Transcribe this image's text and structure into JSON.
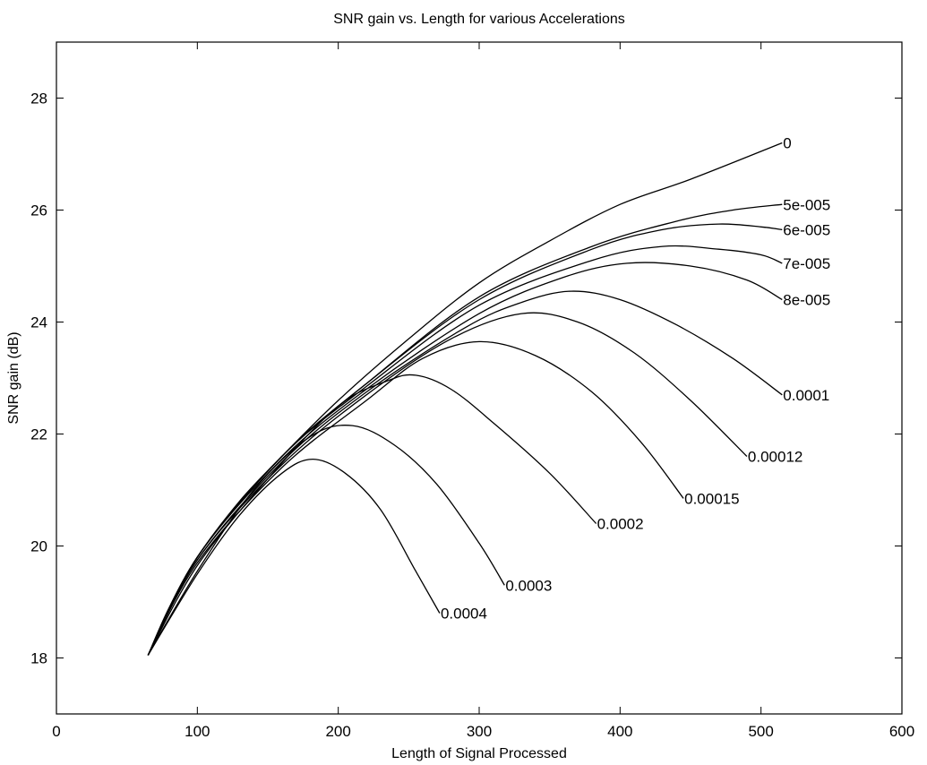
{
  "chart_data": {
    "type": "line",
    "title": "SNR gain vs. Length for various Accelerations",
    "xlabel": "Length of Signal Processed",
    "ylabel": "SNR gain (dB)",
    "xlim": [
      0,
      600
    ],
    "ylim": [
      17,
      29
    ],
    "xticks": [
      0,
      100,
      200,
      300,
      400,
      500,
      600
    ],
    "yticks": [
      18,
      20,
      22,
      24,
      26,
      28
    ],
    "grid": false,
    "series": [
      {
        "name": "0",
        "x": [
          65,
          80,
          100,
          130,
          160,
          200,
          250,
          300,
          350,
          400,
          450,
          515
        ],
        "y": [
          18.05,
          18.9,
          19.8,
          20.8,
          21.6,
          22.6,
          23.7,
          24.7,
          25.45,
          26.1,
          26.55,
          27.2
        ]
      },
      {
        "name": "5e-005",
        "x": [
          65,
          100,
          160,
          220,
          300,
          380,
          440,
          480,
          515
        ],
        "y": [
          18.05,
          19.8,
          21.6,
          22.9,
          24.45,
          25.35,
          25.8,
          26.0,
          26.1
        ]
      },
      {
        "name": "6e-005",
        "x": [
          65,
          100,
          160,
          220,
          300,
          380,
          430,
          470,
          500,
          515
        ],
        "y": [
          18.05,
          19.8,
          21.6,
          22.9,
          24.4,
          25.3,
          25.65,
          25.75,
          25.7,
          25.65
        ]
      },
      {
        "name": "7e-005",
        "x": [
          65,
          100,
          160,
          220,
          300,
          380,
          430,
          470,
          500,
          515
        ],
        "y": [
          18.05,
          19.8,
          21.6,
          22.85,
          24.3,
          25.1,
          25.35,
          25.3,
          25.2,
          25.05
        ]
      },
      {
        "name": "8e-005",
        "x": [
          65,
          100,
          160,
          220,
          300,
          360,
          405,
          450,
          490,
          515
        ],
        "y": [
          18.05,
          19.8,
          21.55,
          22.8,
          24.15,
          24.8,
          25.05,
          25.0,
          24.75,
          24.4
        ]
      },
      {
        "name": "0.0001",
        "x": [
          65,
          100,
          160,
          220,
          290,
          330,
          365,
          400,
          440,
          480,
          515
        ],
        "y": [
          18.05,
          19.75,
          21.5,
          22.75,
          23.9,
          24.35,
          24.55,
          24.4,
          23.95,
          23.35,
          22.7
        ]
      },
      {
        "name": "0.00012",
        "x": [
          65,
          100,
          160,
          220,
          280,
          330,
          370,
          410,
          450,
          490
        ],
        "y": [
          18.05,
          19.75,
          21.45,
          22.7,
          23.7,
          24.15,
          24.0,
          23.45,
          22.6,
          21.6
        ]
      },
      {
        "name": "0.00015",
        "x": [
          65,
          100,
          160,
          220,
          260,
          300,
          340,
          380,
          415,
          445
        ],
        "y": [
          18.05,
          19.7,
          21.4,
          22.6,
          23.35,
          23.65,
          23.4,
          22.75,
          21.85,
          20.85
        ]
      },
      {
        "name": "0.0002",
        "x": [
          65,
          100,
          150,
          200,
          235,
          255,
          280,
          310,
          350,
          383
        ],
        "y": [
          18.05,
          19.65,
          21.2,
          22.5,
          22.95,
          23.05,
          22.8,
          22.2,
          21.3,
          20.4
        ]
      },
      {
        "name": "0.0003",
        "x": [
          65,
          100,
          140,
          180,
          210,
          240,
          270,
          300,
          318
        ],
        "y": [
          18.05,
          19.55,
          21.0,
          21.95,
          22.15,
          21.8,
          21.1,
          20.05,
          19.3
        ]
      },
      {
        "name": "0.0004",
        "x": [
          65,
          100,
          130,
          160,
          182,
          205,
          230,
          255,
          272
        ],
        "y": [
          18.05,
          19.5,
          20.55,
          21.3,
          21.55,
          21.3,
          20.65,
          19.55,
          18.8
        ]
      }
    ],
    "series_label_offsets_note": ""
  }
}
